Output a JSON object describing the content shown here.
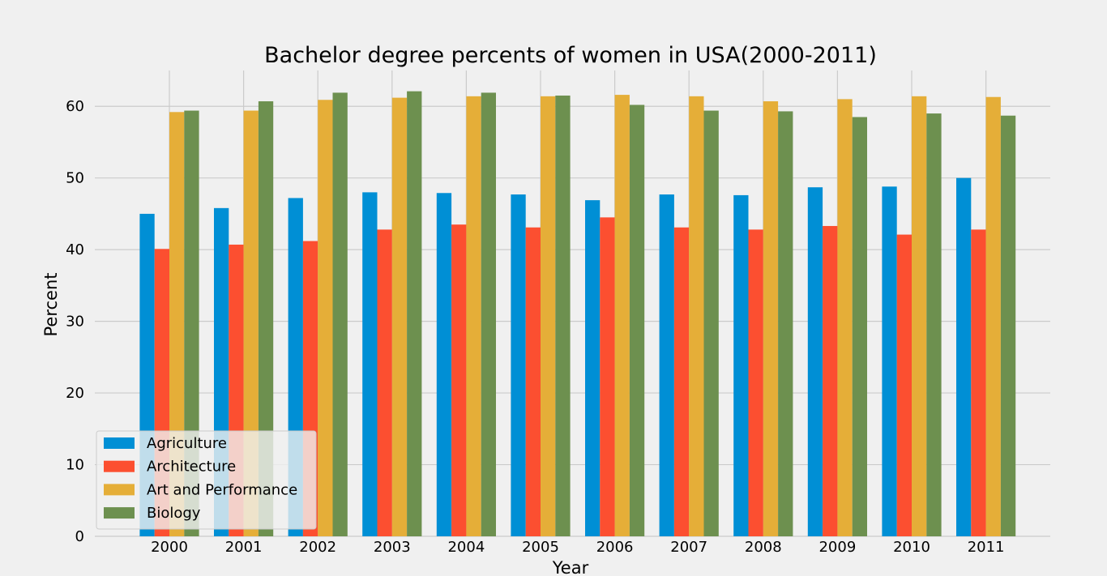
{
  "chart_data": {
    "type": "bar",
    "title": "Bachelor degree percents of women in USA(2000-2011)",
    "xlabel": "Year",
    "ylabel": "Percent",
    "ylim": [
      0,
      65
    ],
    "yticks": [
      0,
      10,
      20,
      30,
      40,
      50,
      60
    ],
    "grid": true,
    "legend_position": "lower-left",
    "categories": [
      "2000",
      "2001",
      "2002",
      "2003",
      "2004",
      "2005",
      "2006",
      "2007",
      "2008",
      "2009",
      "2010",
      "2011"
    ],
    "series": [
      {
        "name": "Agriculture",
        "color": "#008fd5",
        "values": [
          45.0,
          45.8,
          47.2,
          48.0,
          47.9,
          47.7,
          46.9,
          47.7,
          47.6,
          48.7,
          48.8,
          50.0
        ]
      },
      {
        "name": "Architecture",
        "color": "#fc4f30",
        "values": [
          40.1,
          40.7,
          41.2,
          42.8,
          43.5,
          43.1,
          44.5,
          43.1,
          42.8,
          43.3,
          42.1,
          42.8
        ]
      },
      {
        "name": "Art and Performance",
        "color": "#e5ae38",
        "values": [
          59.2,
          59.4,
          60.9,
          61.2,
          61.4,
          61.4,
          61.6,
          61.4,
          60.7,
          61.0,
          61.4,
          61.3
        ]
      },
      {
        "name": "Biology",
        "color": "#6d904f",
        "values": [
          59.4,
          60.7,
          61.9,
          62.1,
          61.9,
          61.5,
          60.2,
          59.4,
          59.3,
          58.5,
          59.0,
          58.7
        ]
      }
    ]
  }
}
